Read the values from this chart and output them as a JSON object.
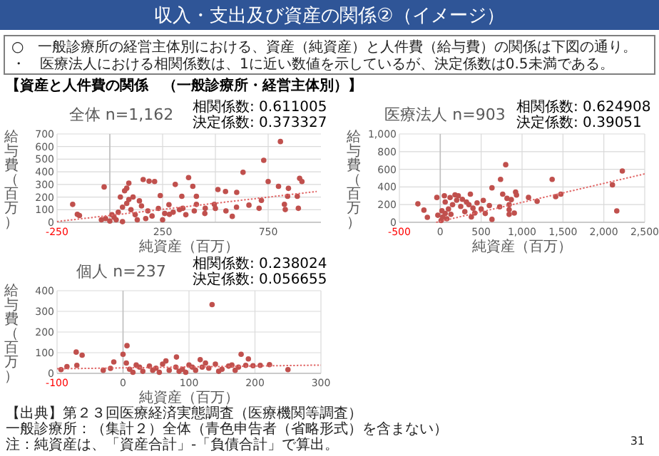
{
  "chart_data": [
    {
      "type": "other",
      "title": "収入・支出及び資産の関係②（イメージ）",
      "annotations": [
        "○　一般診療所の経営主体別における、資産（純資産）と人件費（給与費）の関係は下図の通り。",
        "・　医療法人における相関係数は、1に近い数値を示しているが、決定係数は0.5未満である。",
        "【資産と人件費の関係　（一般診療所・経営主体別）】",
        "【出典】第２３回医療経済実態調査（医療機関等調査）",
        "一般診療所：（集計２）全体（青色申告者（省略形式）を含まない）",
        "注：純資産は、「資産合計」-「負債合計」で算出。",
        "31"
      ]
    },
    {
      "type": "scatter",
      "title": "全体 n=1,162",
      "xlabel": "純資産（百万）",
      "ylabel": "給与費（百万）",
      "annotations": [
        "相関係数: 0.611005",
        "決定係数: 0.373327"
      ],
      "xlim": [
        -250,
        1000
      ],
      "xticks": [
        -250,
        {
          "value": 0,
          "label": null
        },
        250,
        {
          "value": 500,
          "label": null
        },
        750
      ],
      "ylim": [
        0,
        700
      ],
      "yticks": [
        0,
        100,
        200,
        300,
        400,
        500,
        600,
        700
      ],
      "grid": true,
      "series": [
        {
          "color": "#c0504d",
          "marker": "circle",
          "x": [
            -176,
            -154,
            -144,
            -27,
            90,
            80,
            158,
            186,
            212,
            239,
            310,
            373,
            393,
            341,
            410,
            512,
            548,
            601,
            631,
            729,
            750,
            799,
            846,
            899,
            910,
            842,
            888,
            827,
            831,
            893,
            707,
            718,
            659,
            580,
            495,
            452,
            410,
            346,
            282,
            808,
            0,
            20,
            40,
            60,
            80,
            100,
            120,
            150,
            180,
            200,
            230,
            260,
            280,
            30,
            50,
            70,
            90,
            110,
            140,
            10,
            -20,
            -40,
            170,
            300,
            330,
            360,
            400,
            450,
            500,
            550,
            600,
            250,
            130,
            60
          ],
          "values": [
            142,
            63,
            54,
            280,
            310,
            270,
            339,
            326,
            323,
            212,
            300,
            354,
            285,
            206,
            206,
            260,
            244,
            237,
            396,
            491,
            323,
            285,
            269,
            348,
            323,
            206,
            206,
            142,
            101,
            111,
            111,
            174,
            136,
            47,
            142,
            111,
            142,
            111,
            63,
            640,
            10,
            40,
            80,
            120,
            150,
            100,
            60,
            130,
            90,
            50,
            110,
            70,
            140,
            20,
            200,
            250,
            180,
            200,
            170,
            60,
            30,
            20,
            30,
            80,
            100,
            60,
            90,
            70,
            110,
            90,
            120,
            20,
            20,
            5
          ]
        },
        {
          "type": "line",
          "color": "#e06666",
          "line_style": "dotted",
          "x": [
            -250,
            980
          ],
          "values": [
            6,
            244
          ]
        }
      ]
    },
    {
      "type": "scatter",
      "title": "医療法人 n=903",
      "xlabel": "純資産（百万）",
      "ylabel": "給与費（百万）",
      "annotations": [
        "相関係数: 0.624908",
        "決定係数: 0.39051"
      ],
      "xlim": [
        -500,
        2500
      ],
      "xticks": [
        -500,
        0,
        500,
        {
          "value": 1000,
          "label": "1,000"
        },
        {
          "value": 1500,
          "label": "1,500"
        },
        {
          "value": 2000,
          "label": "2,000"
        },
        {
          "value": 2500,
          "label": "2,500"
        }
      ],
      "ylim": [
        0,
        1000
      ],
      "yticks": [
        0,
        200,
        400,
        600,
        800,
        {
          "value": 1000,
          "label": "1,000"
        }
      ],
      "grid": true,
      "series": [
        {
          "color": "#c0504d",
          "marker": "circle",
          "x": [
            800,
            737,
            632,
            1368,
            1411,
            1474,
            1079,
            1184,
            921,
            932,
            763,
            816,
            868,
            842,
            842,
            842,
            905,
            726,
            632,
            2105,
            2226,
            2158,
            -274,
            -200,
            -158,
            -42,
            368,
            526,
            421,
            10,
            30,
            60,
            100,
            150,
            200,
            250,
            300,
            350,
            400,
            450,
            500,
            550,
            600,
            50,
            120,
            180,
            220,
            270,
            320,
            80,
            130,
            380,
            20,
            -30,
            60
          ],
          "values": [
            652,
            486,
            390,
            486,
            290,
            319,
            281,
            238,
            343,
            309,
            319,
            271,
            257,
            200,
            143,
            90,
            105,
            176,
            33,
            424,
            581,
            129,
            209,
            138,
            57,
            281,
            319,
            248,
            105,
            20,
            60,
            100,
            150,
            200,
            250,
            180,
            120,
            200,
            160,
            220,
            150,
            100,
            190,
            300,
            280,
            310,
            300,
            260,
            230,
            40,
            90,
            60,
            130,
            80,
            230
          ]
        },
        {
          "type": "line",
          "color": "#e06666",
          "line_style": "dotted",
          "x": [
            -50,
            2500
          ],
          "values": [
            0,
            548
          ]
        }
      ]
    },
    {
      "type": "scatter",
      "title": "個人 n=237",
      "xlabel": "純資産（百万）",
      "ylabel": "給与費（百万）",
      "annotations": [
        "相関係数: 0.238024",
        "決定係数: 0.056655"
      ],
      "xlim": [
        -100,
        300
      ],
      "xticks": [
        -100,
        0,
        100,
        200,
        300
      ],
      "ylim": [
        0,
        400
      ],
      "yticks": [
        0,
        100,
        200,
        300,
        400
      ],
      "grid": true,
      "series": [
        {
          "color": "#c0504d",
          "marker": "circle",
          "x": [
            135,
            6,
            -71,
            -62,
            -70,
            -94,
            -85,
            0,
            -14,
            81,
            117,
            179,
            190,
            186,
            197,
            208,
            222,
            250,
            -30,
            -19,
            10,
            20,
            30,
            40,
            50,
            60,
            70,
            80,
            90,
            100,
            110,
            120,
            130,
            140,
            150,
            160,
            170,
            175,
            5,
            25,
            45,
            65,
            85,
            105,
            125,
            145,
            165,
            15,
            55,
            95
          ],
          "values": [
            333,
            134,
            103,
            88,
            39,
            18,
            33,
            92,
            55,
            79,
            66,
            92,
            70,
            39,
            37,
            39,
            42,
            18,
            15,
            24,
            20,
            40,
            10,
            35,
            25,
            45,
            15,
            30,
            20,
            40,
            15,
            30,
            25,
            45,
            20,
            35,
            15,
            30,
            50,
            30,
            15,
            60,
            10,
            30,
            50,
            10,
            40,
            5,
            5,
            5
          ]
        },
        {
          "type": "line",
          "color": "#e06666",
          "line_style": "dotted",
          "x": [
            -100,
            300
          ],
          "values": [
            22,
            40
          ]
        }
      ]
    }
  ]
}
